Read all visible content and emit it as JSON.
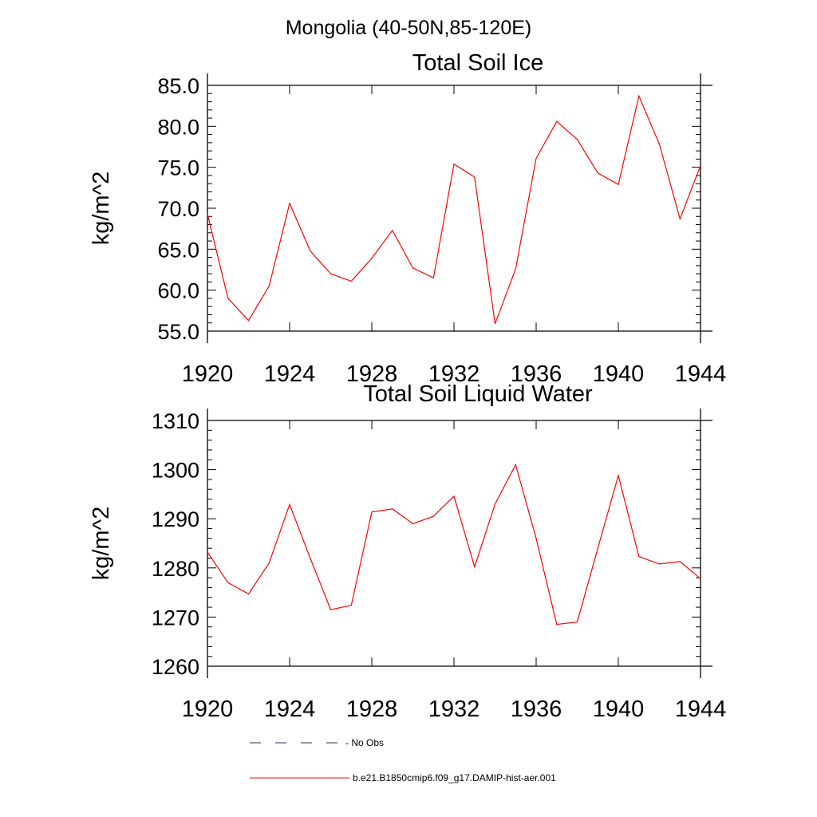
{
  "figure": {
    "suptitle": "Mongolia (40-50N,85-120E)"
  },
  "chart_data": [
    {
      "type": "line",
      "title": "Total Soil Ice",
      "xlabel": "",
      "ylabel": "kg/m^2",
      "xlim": [
        1920,
        1944
      ],
      "ylim": [
        55,
        85
      ],
      "y_ticks": [
        55,
        60,
        65,
        70,
        75,
        80,
        85
      ],
      "y_tick_labels": [
        "55.0",
        "60.0",
        "65.0",
        "70.0",
        "75.0",
        "80.0",
        "85.0"
      ],
      "x_ticks": [
        1920,
        1924,
        1928,
        1932,
        1936,
        1940,
        1944
      ],
      "x_tick_labels": [
        "1920",
        "1924",
        "1928",
        "1932",
        "1936",
        "1940",
        "1944"
      ],
      "grid": false,
      "series": [
        {
          "name": "b.e21.B1850cmip6.f09_g17.DAMIP-hist-aer.001",
          "color": "#ff0000",
          "x": [
            1920,
            1921,
            1922,
            1923,
            1924,
            1925,
            1926,
            1927,
            1928,
            1929,
            1930,
            1931,
            1932,
            1933,
            1934,
            1935,
            1936,
            1937,
            1938,
            1939,
            1940,
            1941,
            1942,
            1943,
            1944
          ],
          "values": [
            69.3,
            59.0,
            56.3,
            60.5,
            70.6,
            64.8,
            62.0,
            61.1,
            63.9,
            67.3,
            62.7,
            61.5,
            75.4,
            73.8,
            55.9,
            62.6,
            76.1,
            80.6,
            78.4,
            74.3,
            72.9,
            83.7,
            77.8,
            68.7,
            75.2
          ]
        }
      ]
    },
    {
      "type": "line",
      "title": "Total Soil Liquid Water",
      "xlabel": "",
      "ylabel": "kg/m^2",
      "xlim": [
        1920,
        1944
      ],
      "ylim": [
        1260,
        1310
      ],
      "y_ticks": [
        1260,
        1270,
        1280,
        1290,
        1300,
        1310
      ],
      "y_tick_labels": [
        "1260",
        "1270",
        "1280",
        "1290",
        "1300",
        "1310"
      ],
      "x_ticks": [
        1920,
        1924,
        1928,
        1932,
        1936,
        1940,
        1944
      ],
      "x_tick_labels": [
        "1920",
        "1924",
        "1928",
        "1932",
        "1936",
        "1940",
        "1944"
      ],
      "grid": false,
      "series": [
        {
          "name": "b.e21.B1850cmip6.f09_g17.DAMIP-hist-aer.001",
          "color": "#ff0000",
          "x": [
            1920,
            1921,
            1922,
            1923,
            1924,
            1925,
            1926,
            1927,
            1928,
            1929,
            1930,
            1931,
            1932,
            1933,
            1934,
            1935,
            1936,
            1937,
            1938,
            1939,
            1940,
            1941,
            1942,
            1943,
            1944
          ],
          "values": [
            1283.2,
            1277.0,
            1274.7,
            1281.0,
            1292.9,
            1282.0,
            1271.5,
            1272.4,
            1291.4,
            1292.0,
            1289.0,
            1290.5,
            1294.6,
            1280.2,
            1293.0,
            1301.0,
            1286.0,
            1268.5,
            1269.0,
            1284.0,
            1298.8,
            1282.3,
            1280.8,
            1281.3,
            1277.8
          ]
        }
      ]
    }
  ],
  "legend": {
    "placement": "bottom",
    "items": [
      {
        "label": "- No Obs",
        "style": "dashed",
        "color": "#2b2b6b"
      },
      {
        "label": "b.e21.B1850cmip6.f09_g17.DAMIP-hist-aer.001",
        "style": "solid",
        "color": "#ff0000"
      }
    ]
  }
}
